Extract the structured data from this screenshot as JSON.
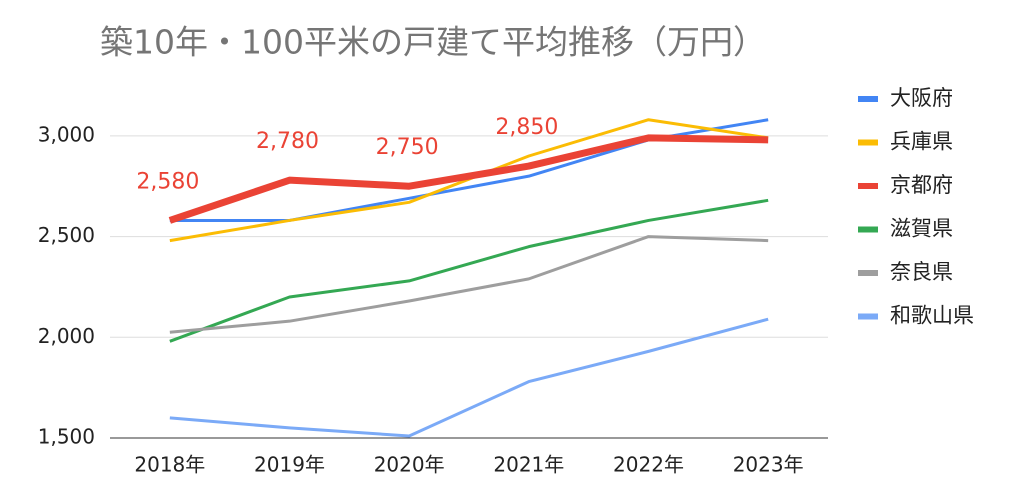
{
  "chart_data": {
    "type": "line",
    "title": "築10年・100平米の戸建て平均推移（万円）",
    "categories": [
      "2018年",
      "2019年",
      "2020年",
      "2021年",
      "2022年",
      "2023年"
    ],
    "series": [
      {
        "name": "大阪府",
        "color": "#4285f4",
        "line_width": 3,
        "values": [
          2580,
          2580,
          2690,
          2800,
          2980,
          3080
        ]
      },
      {
        "name": "兵庫県",
        "color": "#fbbc04",
        "line_width": 3,
        "values": [
          2480,
          2580,
          2670,
          2900,
          3080,
          2990
        ]
      },
      {
        "name": "京都府",
        "color": "#ea4335",
        "line_width": 7,
        "values": [
          2580,
          2780,
          2750,
          2850,
          2990,
          2980
        ],
        "value_labels": [
          "2,580",
          "2,780",
          "2,750",
          "2,850",
          null,
          null
        ]
      },
      {
        "name": "滋賀県",
        "color": "#34a853",
        "line_width": 3,
        "values": [
          1980,
          2200,
          2280,
          2450,
          2580,
          2680
        ]
      },
      {
        "name": "奈良県",
        "color": "#9e9e9e",
        "line_width": 3,
        "values": [
          2025,
          2080,
          2180,
          2290,
          2500,
          2480
        ]
      },
      {
        "name": "和歌山県",
        "color": "#7baaf7",
        "line_width": 3,
        "values": [
          1600,
          1550,
          1510,
          1780,
          1930,
          2090
        ]
      }
    ],
    "ylim": [
      1500,
      3250
    ],
    "yticks": [
      {
        "value": 1500,
        "label": "1,500"
      },
      {
        "value": 2000,
        "label": "2,000"
      },
      {
        "value": 2500,
        "label": "2,500"
      },
      {
        "value": 3000,
        "label": "3,000"
      }
    ],
    "grid": true,
    "legend": "right"
  }
}
